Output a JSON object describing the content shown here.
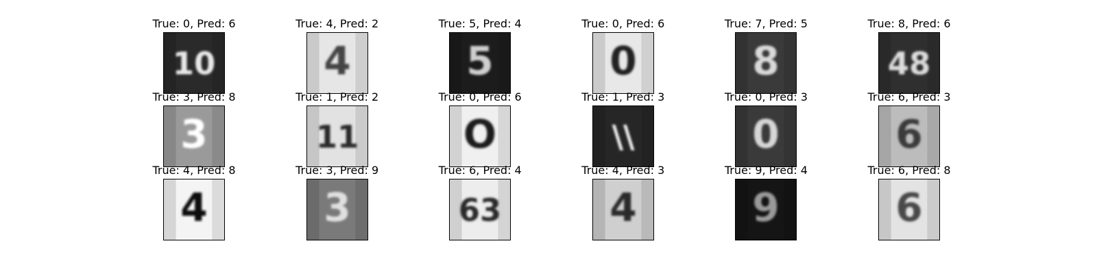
{
  "figure": {
    "panels": [
      {
        "title": "True: 0, Pred: 6",
        "glyph": "10",
        "bg": "#2a2a2a",
        "fg": "#e8e8e8"
      },
      {
        "title": "True: 4, Pred: 2",
        "glyph": "4",
        "bg": "#e6e6e6",
        "fg": "#444444"
      },
      {
        "title": "True: 5, Pred: 4",
        "glyph": "5",
        "bg": "#1c1c1c",
        "fg": "#cfcfcf"
      },
      {
        "title": "True: 0, Pred: 6",
        "glyph": "0",
        "bg": "#e8e8e8",
        "fg": "#222222"
      },
      {
        "title": "True: 7, Pred: 5",
        "glyph": "8",
        "bg": "#3a3a3a",
        "fg": "#d9d9d9"
      },
      {
        "title": "True: 8, Pred: 6",
        "glyph": "48",
        "bg": "#2f2f2f",
        "fg": "#dcdcdc"
      },
      {
        "title": "True: 3, Pred: 8",
        "glyph": "3",
        "bg": "#9a9a9a",
        "fg": "#ffffff"
      },
      {
        "title": "True: 1, Pred: 2",
        "glyph": "11",
        "bg": "#e2e2e2",
        "fg": "#2a2a2a"
      },
      {
        "title": "True: 0, Pred: 6",
        "glyph": "O",
        "bg": "#f0f0f0",
        "fg": "#1f1f1f"
      },
      {
        "title": "True: 1, Pred: 3",
        "glyph": "\\\\",
        "bg": "#262626",
        "fg": "#f2f2f2"
      },
      {
        "title": "True: 0, Pred: 3",
        "glyph": "0",
        "bg": "#3a3a3a",
        "fg": "#d6d6d6"
      },
      {
        "title": "True: 6, Pred: 3",
        "glyph": "6",
        "bg": "#bcbcbc",
        "fg": "#3a3a3a"
      },
      {
        "title": "True: 4, Pred: 8",
        "glyph": "4",
        "bg": "#f4f4f4",
        "fg": "#111111"
      },
      {
        "title": "True: 3, Pred: 9",
        "glyph": "3",
        "bg": "#7a7a7a",
        "fg": "#e0e0e0"
      },
      {
        "title": "True: 6, Pred: 4",
        "glyph": "63",
        "bg": "#ededed",
        "fg": "#2a2a2a"
      },
      {
        "title": "True: 4, Pred: 3",
        "glyph": "4",
        "bg": "#cfcfcf",
        "fg": "#2b2b2b"
      },
      {
        "title": "True: 9, Pred: 4",
        "glyph": "9",
        "bg": "#151515",
        "fg": "#9a9a9a"
      },
      {
        "title": "True: 6, Pred: 8",
        "glyph": "6",
        "bg": "#e3e3e3",
        "fg": "#4a4a4a"
      }
    ]
  }
}
